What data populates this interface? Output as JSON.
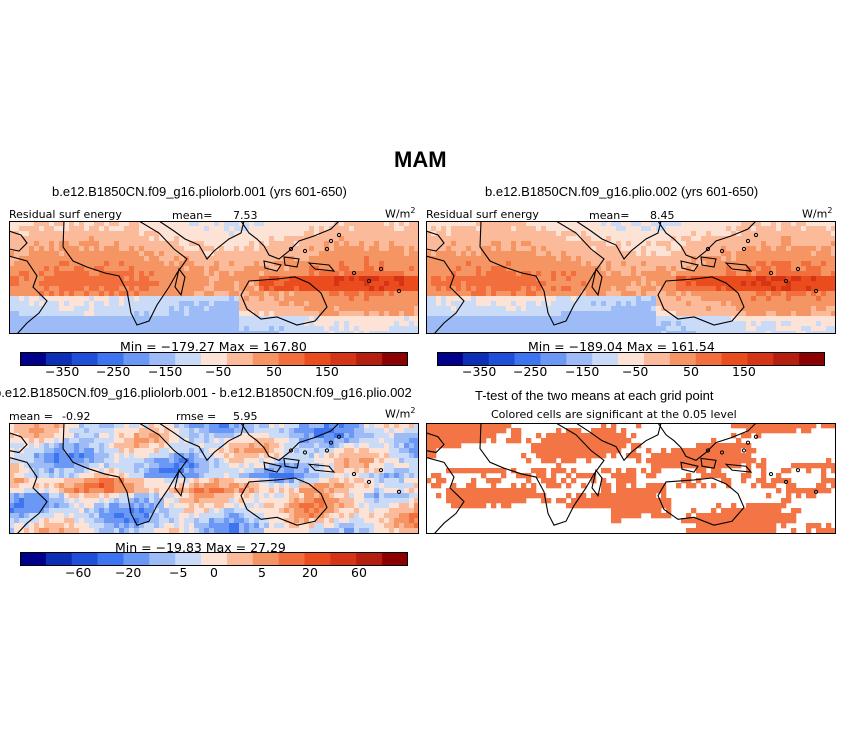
{
  "figure_title": "MAM",
  "palettes": {
    "full": [
      "#00008b",
      "#0c2fb5",
      "#1f4fd8",
      "#3d74ef",
      "#6c98f5",
      "#9dbcf7",
      "#c9dbf7",
      "#fde3d6",
      "#fbbb9b",
      "#f69564",
      "#f26e3d",
      "#ea4c1e",
      "#d63417",
      "#b51f10",
      "#8b0000"
    ],
    "diff": [
      "#00008b",
      "#0c2fb5",
      "#1f4fd8",
      "#3d74ef",
      "#6c98f5",
      "#9dbcf7",
      "#c9dbf7",
      "#fde3d6",
      "#fbbb9b",
      "#f69564",
      "#f26e3d",
      "#ea4c1e",
      "#d63417",
      "#b51f10",
      "#8b0000"
    ],
    "significant": "#f37545"
  },
  "panels": [
    {
      "id": "pliolorb",
      "title": "b.e12.B1850CN.f09_g16.pliolorb.001 (yrs 601-650)",
      "left_label": "Residual surf energy",
      "mean_label": "mean=",
      "mean_value": "7.53",
      "units": "W/m",
      "units_sup": "2",
      "minmax": "Min = −179.27  Max = 167.80",
      "colorbar_ticks": [
        "−350",
        "−250",
        "−150",
        "−50",
        "50",
        "150"
      ]
    },
    {
      "id": "plio",
      "title": "b.e12.B1850CN.f09_g16.plio.002 (yrs 601-650)",
      "left_label": "Residual surf energy",
      "mean_label": "mean=",
      "mean_value": "8.45",
      "units": "W/m",
      "units_sup": "2",
      "minmax": "Min = −189.04  Max = 161.54",
      "colorbar_ticks": [
        "−350",
        "−250",
        "−150",
        "−50",
        "50",
        "150"
      ]
    },
    {
      "id": "difference",
      "title": "b.e12.B1850CN.f09_g16.pliolorb.001 - b.e12.B1850CN.f09_g16.plio.002",
      "mean_label": "mean =",
      "mean_value": "-0.92",
      "rmse_label": "rmse =",
      "rmse_value": "5.95",
      "units": "W/m",
      "units_sup": "2",
      "minmax": "Min = −19.83  Max =  27.29",
      "colorbar_ticks": [
        "−60",
        "−20",
        "−5",
        "0",
        "5",
        "20",
        "60"
      ]
    },
    {
      "id": "ttest",
      "title": "T-test of the two means at each grid point",
      "subtitle": "Colored cells are significant at the 0.05 level"
    }
  ],
  "chart_data": [
    {
      "type": "heatmap",
      "title": "b.e12.B1850CN.f09_g16.pliolorb.001 (yrs 601-650)",
      "variable": "Residual surf energy",
      "units": "W/m2",
      "mean": 7.53,
      "min": -179.27,
      "max": 167.8,
      "contour_levels": [
        -350,
        -300,
        -250,
        -200,
        -150,
        -100,
        -50,
        0,
        50,
        100,
        150,
        200
      ],
      "region": "Tropical belt, Atlantic - Indian - Pacific"
    },
    {
      "type": "heatmap",
      "title": "b.e12.B1850CN.f09_g16.plio.002 (yrs 601-650)",
      "variable": "Residual surf energy",
      "units": "W/m2",
      "mean": 8.45,
      "min": -189.04,
      "max": 161.54,
      "contour_levels": [
        -350,
        -300,
        -250,
        -200,
        -150,
        -100,
        -50,
        0,
        50,
        100,
        150,
        200
      ]
    },
    {
      "type": "heatmap",
      "title": "b.e12.B1850CN.f09_g16.pliolorb.001 - b.e12.B1850CN.f09_g16.plio.002",
      "units": "W/m2",
      "mean": -0.92,
      "rmse": 5.95,
      "min": -19.83,
      "max": 27.29,
      "contour_levels": [
        -60,
        -40,
        -20,
        -10,
        -5,
        -2,
        0,
        2,
        5,
        10,
        20,
        40,
        60
      ]
    },
    {
      "type": "heatmap",
      "title": "T-test of the two means at each grid point",
      "note": "Colored cells are significant at the 0.05 level",
      "significance_level": 0.05
    }
  ]
}
